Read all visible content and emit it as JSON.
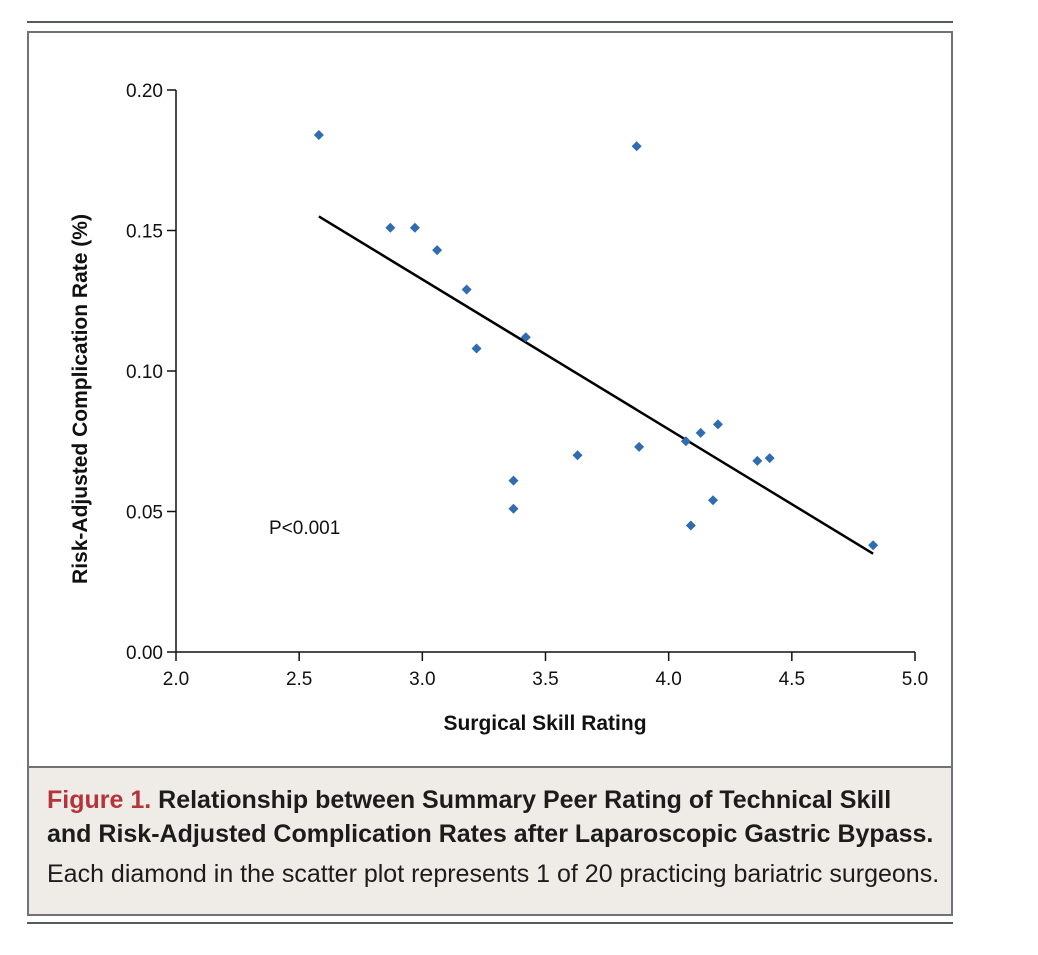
{
  "chart_data": {
    "type": "scatter",
    "title": "",
    "xlabel": "Surgical Skill Rating",
    "ylabel": "Risk-Adjusted Complication Rate (%)",
    "xlim": [
      2.0,
      5.0
    ],
    "ylim": [
      0.0,
      0.2
    ],
    "xticks": [
      "2.0",
      "2.5",
      "3.0",
      "3.5",
      "4.0",
      "4.5",
      "5.0"
    ],
    "yticks": [
      "0.00",
      "0.05",
      "0.10",
      "0.15",
      "0.20"
    ],
    "grid": false,
    "marker": "diamond",
    "marker_color": "#2f6cb0",
    "line_color": "#000000",
    "annotation": "P<0.001",
    "points": [
      {
        "x": 2.58,
        "y": 0.184
      },
      {
        "x": 2.87,
        "y": 0.151
      },
      {
        "x": 2.97,
        "y": 0.151
      },
      {
        "x": 3.06,
        "y": 0.143
      },
      {
        "x": 3.18,
        "y": 0.129
      },
      {
        "x": 3.22,
        "y": 0.108
      },
      {
        "x": 3.37,
        "y": 0.061
      },
      {
        "x": 3.37,
        "y": 0.051
      },
      {
        "x": 3.42,
        "y": 0.112
      },
      {
        "x": 3.63,
        "y": 0.07
      },
      {
        "x": 3.87,
        "y": 0.18
      },
      {
        "x": 3.88,
        "y": 0.073
      },
      {
        "x": 4.07,
        "y": 0.075
      },
      {
        "x": 4.09,
        "y": 0.045
      },
      {
        "x": 4.13,
        "y": 0.078
      },
      {
        "x": 4.18,
        "y": 0.054
      },
      {
        "x": 4.2,
        "y": 0.081
      },
      {
        "x": 4.36,
        "y": 0.068
      },
      {
        "x": 4.41,
        "y": 0.069
      },
      {
        "x": 4.83,
        "y": 0.038
      }
    ],
    "trendline": {
      "x": [
        2.58,
        4.83
      ],
      "y": [
        0.155,
        0.035
      ]
    }
  },
  "caption": {
    "figure_label": "Figure 1.",
    "title_part1": " Relationship between Summary Peer Rating of Technical Skill",
    "title_part2": "and Risk-Adjusted Complication Rates after Laparoscopic Gastric Bypass.",
    "description": "Each diamond in the scatter plot represents 1 of 20 practicing bariatric surgeons."
  },
  "colors": {
    "frame": "#6f7276",
    "caption_bg": "#efebe6",
    "figure_label": "#b5343a"
  }
}
